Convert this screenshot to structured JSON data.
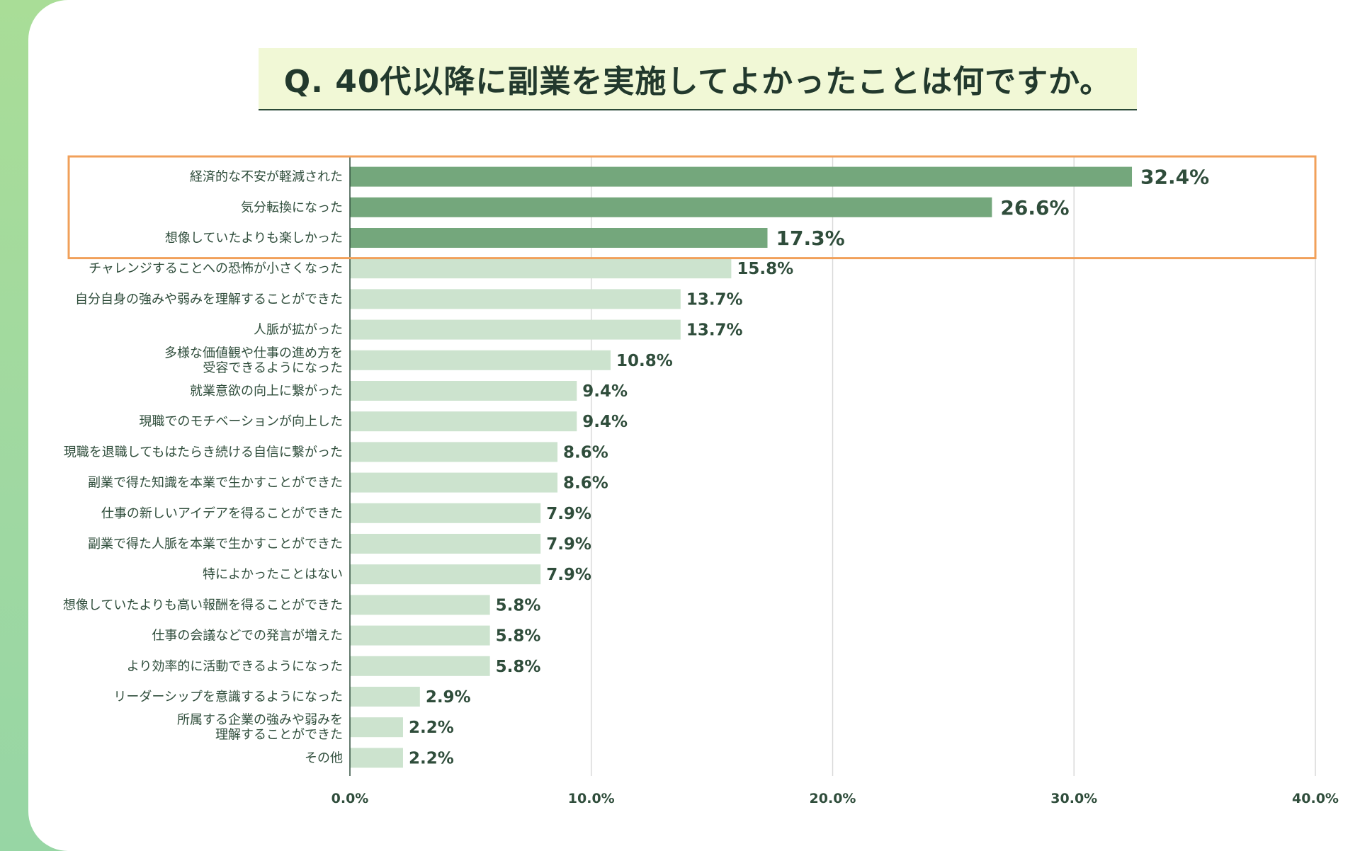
{
  "chart_data": {
    "type": "bar",
    "orientation": "horizontal",
    "title": "Q.  40代以降に副業を実施してよかったことは何ですか。",
    "xlabel": "",
    "ylabel": "",
    "xlim": [
      0,
      40
    ],
    "x_ticks": [
      "0.0%",
      "10.0%",
      "20.0%",
      "30.0%",
      "40.0%"
    ],
    "grid": "vertical",
    "highlight_count": 3,
    "colors": {
      "highlight": "#74a77c",
      "normal": "#cce3ce",
      "box": "#f1a05a",
      "text": "#2f4d3b"
    },
    "categories": [
      [
        "経済的な不安が軽減された"
      ],
      [
        "気分転換になった"
      ],
      [
        "想像していたよりも楽しかった"
      ],
      [
        "チャレンジすることへの恐怖が小さくなった"
      ],
      [
        "自分自身の強みや弱みを理解することができた"
      ],
      [
        "人脈が拡がった"
      ],
      [
        "多様な価値観や仕事の進め方を",
        "受容できるようになった"
      ],
      [
        "就業意欲の向上に繋がった"
      ],
      [
        "現職でのモチベーションが向上した"
      ],
      [
        "現職を退職してもはたらき続ける自信に繋がった"
      ],
      [
        "副業で得た知識を本業で生かすことができた"
      ],
      [
        "仕事の新しいアイデアを得ることができた"
      ],
      [
        "副業で得た人脈を本業で生かすことができた"
      ],
      [
        "特によかったことはない"
      ],
      [
        "想像していたよりも高い報酬を得ることができた"
      ],
      [
        "仕事の会議などでの発言が増えた"
      ],
      [
        "より効率的に活動できるようになった"
      ],
      [
        "リーダーシップを意識するようになった"
      ],
      [
        "所属する企業の強みや弱みを",
        "理解することができた"
      ],
      [
        "その他"
      ]
    ],
    "values": [
      32.4,
      26.6,
      17.3,
      15.8,
      13.7,
      13.7,
      10.8,
      9.4,
      9.4,
      8.6,
      8.6,
      7.9,
      7.9,
      7.9,
      5.8,
      5.8,
      5.8,
      2.9,
      2.2,
      2.2
    ],
    "value_labels": [
      "32.4%",
      "26.6%",
      "17.3%",
      "15.8%",
      "13.7%",
      "13.7%",
      "10.8%",
      "9.4%",
      "9.4%",
      "8.6%",
      "8.6%",
      "7.9%",
      "7.9%",
      "7.9%",
      "5.8%",
      "5.8%",
      "5.8%",
      "2.9%",
      "2.2%",
      "2.2%"
    ]
  }
}
